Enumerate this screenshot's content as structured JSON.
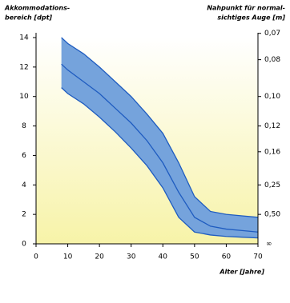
{
  "chart_data": {
    "type": "band",
    "y_label": [
      "Akkommodations-",
      "bereich [dpt]"
    ],
    "y2_label": [
      "Nahpunkt für normal-",
      "sichtiges Auge [m]"
    ],
    "x_label": "Alter [Jahre]",
    "x": [
      8,
      10,
      15,
      20,
      25,
      30,
      35,
      40,
      45,
      50,
      55,
      60,
      65,
      70
    ],
    "upper": [
      14,
      13.6,
      12.9,
      12,
      11,
      10,
      8.8,
      7.5,
      5.5,
      3.2,
      2.2,
      2,
      1.9,
      1.8
    ],
    "mean": [
      12.2,
      11.8,
      11,
      10.2,
      9.2,
      8.2,
      7,
      5.5,
      3.5,
      1.8,
      1.2,
      1,
      0.9,
      0.8
    ],
    "lower": [
      10.6,
      10.2,
      9.5,
      8.6,
      7.6,
      6.5,
      5.3,
      3.8,
      1.8,
      0.8,
      0.6,
      0.5,
      0.45,
      0.4
    ],
    "band_color": "#75a3dc",
    "line_color": "#1f5cc0",
    "xlim": [
      0,
      70
    ],
    "xticks": [
      0,
      10,
      20,
      30,
      40,
      50,
      60,
      70
    ],
    "ylim": [
      0,
      14
    ],
    "yticks": [
      0,
      2,
      4,
      6,
      8,
      10,
      12,
      14
    ],
    "y2scale": "reciprocal",
    "y2ticks": [
      {
        "value": 0.07,
        "label": "0,07"
      },
      {
        "value": 0.08,
        "label": "0,08"
      },
      {
        "value": 0.1,
        "label": "0,10"
      },
      {
        "value": 0.125,
        "label": "0,12"
      },
      {
        "value": 0.16,
        "label": "0,16"
      },
      {
        "value": 0.25,
        "label": "0,25"
      },
      {
        "value": 0.5,
        "label": "0,50"
      }
    ],
    "y2_infinity_label": "∞"
  }
}
